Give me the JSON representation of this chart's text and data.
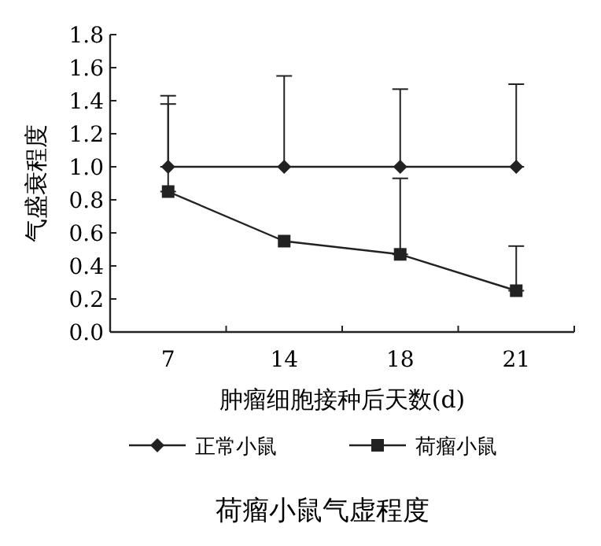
{
  "chart_data": {
    "type": "line",
    "title": "荷瘤小鼠气虚程度",
    "xlabel": "肿瘤细胞接种后天数(d)",
    "ylabel": "气盛衰程度",
    "categories": [
      "7",
      "14",
      "18",
      "21"
    ],
    "series": [
      {
        "name": "正常小鼠",
        "color": "#222222",
        "marker": "diamond",
        "values": [
          1.0,
          1.0,
          1.0,
          1.0
        ],
        "errors": [
          [
            1.0,
            1.43
          ],
          [
            1.0,
            1.55
          ],
          [
            1.0,
            1.47
          ],
          [
            1.0,
            1.5
          ]
        ]
      },
      {
        "name": "荷瘤小鼠",
        "color": "#222222",
        "marker": "square",
        "values": [
          0.85,
          0.55,
          0.47,
          0.25
        ],
        "errors": [
          [
            0.85,
            1.38
          ],
          null,
          [
            0.47,
            0.93
          ],
          [
            0.25,
            0.52
          ]
        ]
      }
    ],
    "ylim": [
      0,
      1.8
    ],
    "yticks": [
      {
        "value": 0,
        "label": "0.0"
      },
      0.2,
      0.4,
      0.6,
      0.8,
      {
        "value": 1,
        "label": "1.0"
      },
      1.2,
      1.4,
      1.6,
      1.8
    ],
    "legend": "bottom",
    "grid": false
  }
}
